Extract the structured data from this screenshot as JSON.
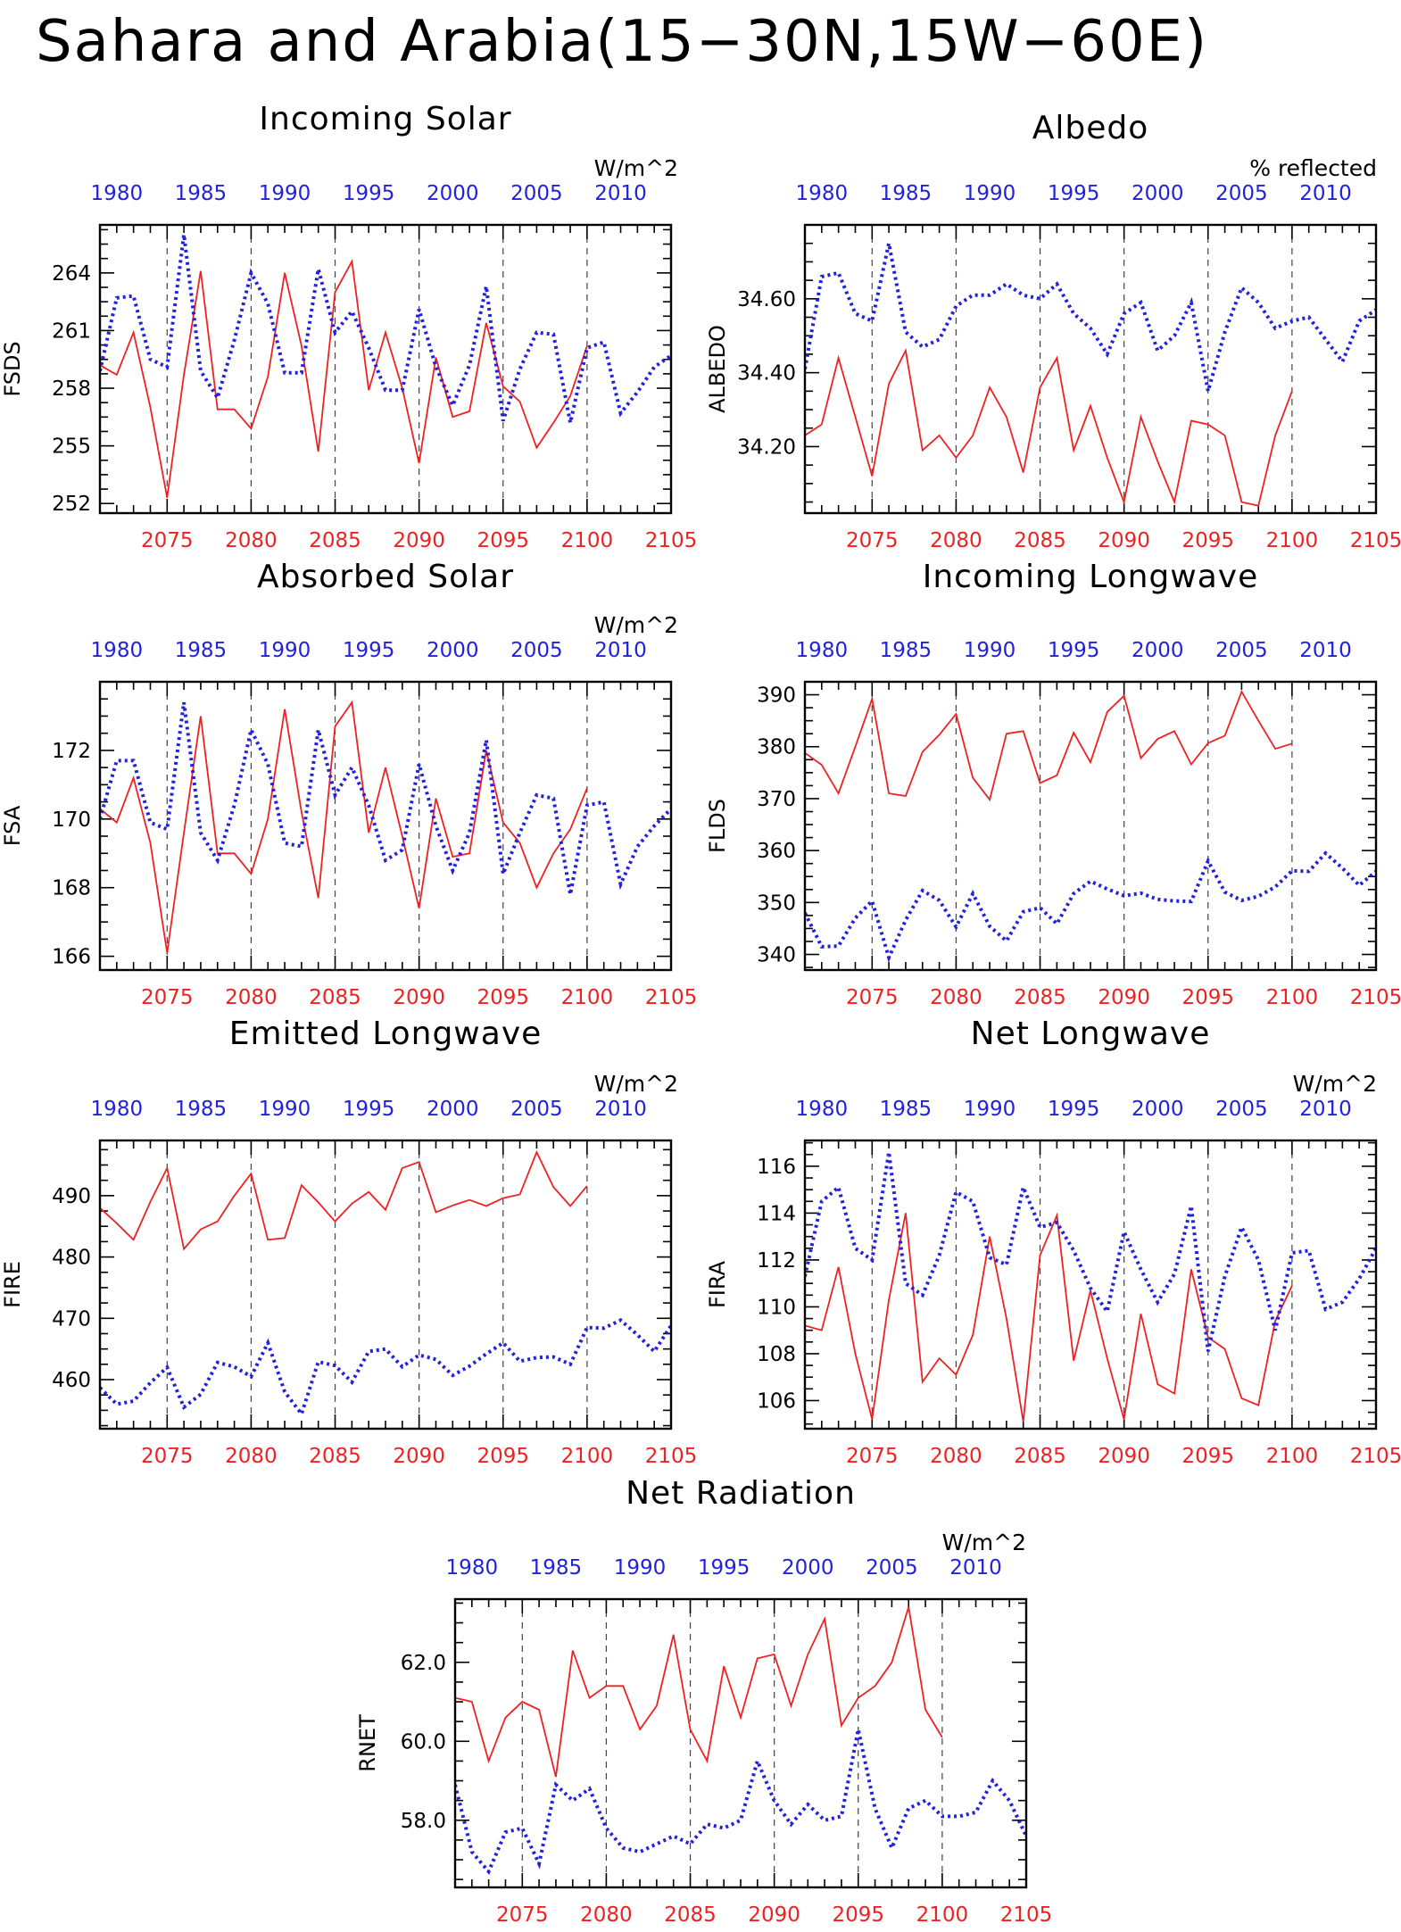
{
  "title": "Sahara and Arabia(15−30N,15W−60E)",
  "colors": {
    "future": "#ee2222",
    "historical": "#2222dd",
    "axis": "#000000"
  },
  "chart_data": [
    {
      "type": "line",
      "title": "Incoming Solar",
      "ylabel": "FSDS",
      "units": "W/m^2",
      "ylim": [
        251.5,
        266.5
      ],
      "yticks": [
        252,
        255,
        258,
        261,
        264
      ],
      "ytick_labels": [
        "252",
        "255",
        "258",
        "261",
        "264"
      ],
      "x_bottom_label_values": [
        2075,
        2080,
        2085,
        2090,
        2095,
        2100,
        2105
      ],
      "x_top_label_values": [
        1980,
        1985,
        1990,
        1995,
        2000,
        2005,
        2010
      ],
      "series": [
        {
          "axis": "bottom",
          "style": "solid",
          "start_year": 2071,
          "values": [
            259.2,
            258.7,
            260.9,
            257.0,
            252.3,
            258.7,
            264.1,
            256.9,
            256.9,
            255.9,
            258.6,
            264.0,
            260.2,
            254.7,
            263.0,
            264.6,
            257.9,
            260.9,
            258.0,
            254.1,
            259.6,
            256.5,
            256.8,
            261.4,
            258.1,
            257.3,
            254.9,
            256.2,
            257.6,
            260.2
          ]
        },
        {
          "axis": "top",
          "style": "dotted",
          "start_year": 1979,
          "values": [
            258.9,
            262.7,
            262.8,
            259.5,
            259.1,
            266.0,
            258.9,
            257.5,
            260.5,
            264.0,
            262.4,
            258.8,
            258.8,
            264.2,
            260.9,
            262.0,
            260.1,
            257.9,
            257.9,
            262.1,
            259.1,
            257.1,
            259.2,
            263.3,
            256.3,
            259.0,
            260.9,
            260.8,
            256.2,
            260.1,
            260.4,
            256.7,
            257.8,
            259.1,
            259.7
          ]
        }
      ]
    },
    {
      "type": "line",
      "title": "Albedo",
      "ylabel": "ALBEDO",
      "units": "% reflected",
      "ylim": [
        34.02,
        34.8
      ],
      "yticks": [
        34.2,
        34.4,
        34.6
      ],
      "ytick_labels": [
        "34.20",
        "34.40",
        "34.60"
      ],
      "x_bottom_label_values": [
        2075,
        2080,
        2085,
        2090,
        2095,
        2100,
        2105
      ],
      "x_top_label_values": [
        1980,
        1985,
        1990,
        1995,
        2000,
        2005,
        2010
      ],
      "series": [
        {
          "axis": "bottom",
          "style": "solid",
          "start_year": 2071,
          "values": [
            34.23,
            34.26,
            34.44,
            34.28,
            34.12,
            34.37,
            34.46,
            34.19,
            34.23,
            34.17,
            34.23,
            34.36,
            34.28,
            34.13,
            34.36,
            34.44,
            34.19,
            34.31,
            34.17,
            34.05,
            34.28,
            34.16,
            34.05,
            34.27,
            34.26,
            34.23,
            34.05,
            34.04,
            34.23,
            34.35
          ]
        },
        {
          "axis": "top",
          "style": "dotted",
          "start_year": 1979,
          "values": [
            34.41,
            34.66,
            34.67,
            34.56,
            34.54,
            34.75,
            34.51,
            34.47,
            34.49,
            34.58,
            34.61,
            34.61,
            34.64,
            34.61,
            34.6,
            34.64,
            34.56,
            34.52,
            34.45,
            34.56,
            34.59,
            34.46,
            34.5,
            34.59,
            34.35,
            34.51,
            34.63,
            34.59,
            34.52,
            34.54,
            34.55,
            34.49,
            34.43,
            34.54,
            34.57
          ]
        }
      ]
    },
    {
      "type": "line",
      "title": "Absorbed Solar",
      "ylabel": "FSA",
      "units": "W/m^2",
      "ylim": [
        165.6,
        174.0
      ],
      "yticks": [
        166,
        168,
        170,
        172
      ],
      "ytick_labels": [
        "166",
        "168",
        "170",
        "172"
      ],
      "x_bottom_label_values": [
        2075,
        2080,
        2085,
        2090,
        2095,
        2100,
        2105
      ],
      "x_top_label_values": [
        1980,
        1985,
        1990,
        1995,
        2000,
        2005,
        2010
      ],
      "series": [
        {
          "axis": "bottom",
          "style": "solid",
          "start_year": 2071,
          "values": [
            170.3,
            169.9,
            171.2,
            169.3,
            166.1,
            169.6,
            173.0,
            169.0,
            169.0,
            168.4,
            170.0,
            173.2,
            170.2,
            167.7,
            172.7,
            173.4,
            169.6,
            171.5,
            169.5,
            167.4,
            170.6,
            168.9,
            169.0,
            172.0,
            169.9,
            169.3,
            168.0,
            169.0,
            169.7,
            170.9
          ]
        },
        {
          "axis": "top",
          "style": "dotted",
          "start_year": 1979,
          "values": [
            170.0,
            171.7,
            171.7,
            169.9,
            169.7,
            173.4,
            169.6,
            168.8,
            170.4,
            172.6,
            171.6,
            169.3,
            169.2,
            172.6,
            170.7,
            171.5,
            170.4,
            168.8,
            169.1,
            171.6,
            169.8,
            168.5,
            169.6,
            172.3,
            168.4,
            169.6,
            170.7,
            170.6,
            167.8,
            170.4,
            170.5,
            168.1,
            169.2,
            169.8,
            170.3
          ]
        }
      ]
    },
    {
      "type": "line",
      "title": "Incoming Longwave",
      "ylabel": "FLDS",
      "units": "",
      "ylim": [
        337.0,
        392.5
      ],
      "yticks": [
        340,
        350,
        360,
        370,
        380,
        390
      ],
      "ytick_labels": [
        "340",
        "350",
        "360",
        "370",
        "380",
        "390"
      ],
      "x_bottom_label_values": [
        2075,
        2080,
        2085,
        2090,
        2095,
        2100,
        2105
      ],
      "x_top_label_values": [
        1980,
        1985,
        1990,
        1995,
        2000,
        2005,
        2010
      ],
      "series": [
        {
          "axis": "bottom",
          "style": "solid",
          "start_year": 2071,
          "values": [
            378.8,
            376.5,
            371.0,
            380.0,
            389.2,
            371.0,
            370.5,
            379.0,
            382.3,
            386.3,
            374.0,
            369.8,
            382.5,
            383.0,
            373.0,
            374.5,
            382.7,
            377.0,
            386.7,
            389.8,
            377.8,
            381.5,
            383.0,
            376.6,
            380.7,
            382.1,
            390.6,
            385.0,
            379.6,
            380.6
          ]
        },
        {
          "axis": "top",
          "style": "dotted",
          "start_year": 1979,
          "values": [
            348.0,
            341.5,
            341.6,
            347.0,
            350.3,
            339.4,
            346.6,
            352.3,
            350.4,
            345.3,
            351.7,
            345.4,
            342.6,
            348.2,
            349.0,
            345.9,
            351.7,
            354.1,
            352.6,
            351.3,
            351.8,
            350.6,
            350.3,
            350.2,
            358.0,
            352.0,
            350.4,
            351.2,
            353.0,
            356.1,
            356.0,
            359.5,
            356.6,
            353.3,
            356.0
          ]
        }
      ]
    },
    {
      "type": "line",
      "title": "Emitted Longwave",
      "ylabel": "FIRE",
      "units": "W/m^2",
      "ylim": [
        452.0,
        499.0
      ],
      "yticks": [
        460,
        470,
        480,
        490
      ],
      "ytick_labels": [
        "460",
        "470",
        "480",
        "490"
      ],
      "x_bottom_label_values": [
        2075,
        2080,
        2085,
        2090,
        2095,
        2100,
        2105
      ],
      "x_top_label_values": [
        1980,
        1985,
        1990,
        1995,
        2000,
        2005,
        2010
      ],
      "series": [
        {
          "axis": "bottom",
          "style": "solid",
          "start_year": 2071,
          "values": [
            488.0,
            485.5,
            482.8,
            489.0,
            494.5,
            481.3,
            484.5,
            485.8,
            490.0,
            493.6,
            482.8,
            483.1,
            491.7,
            488.9,
            485.8,
            488.7,
            490.6,
            487.7,
            494.5,
            495.5,
            487.3,
            488.4,
            489.3,
            488.3,
            489.6,
            490.2,
            497.1,
            491.4,
            488.3,
            491.6
          ]
        },
        {
          "axis": "top",
          "style": "dotted",
          "start_year": 1979,
          "values": [
            458.7,
            456.0,
            456.5,
            459.5,
            462.0,
            455.5,
            457.6,
            462.8,
            462.1,
            460.5,
            466.0,
            458.0,
            454.4,
            462.9,
            462.3,
            459.6,
            464.6,
            465.0,
            462.1,
            464.0,
            463.3,
            460.7,
            462.2,
            464.2,
            466.0,
            463.0,
            463.6,
            463.7,
            462.5,
            468.5,
            468.4,
            469.7,
            467.3,
            464.6,
            468.8
          ]
        }
      ]
    },
    {
      "type": "line",
      "title": "Net Longwave",
      "ylabel": "FIRA",
      "units": "W/m^2",
      "ylim": [
        104.8,
        117.1
      ],
      "yticks": [
        106,
        108,
        110,
        112,
        114,
        116
      ],
      "ytick_labels": [
        "106",
        "108",
        "110",
        "112",
        "114",
        "116"
      ],
      "x_bottom_label_values": [
        2075,
        2080,
        2085,
        2090,
        2095,
        2100,
        2105
      ],
      "x_top_label_values": [
        1980,
        1985,
        1990,
        1995,
        2000,
        2005,
        2010
      ],
      "series": [
        {
          "axis": "bottom",
          "style": "solid",
          "start_year": 2071,
          "values": [
            109.2,
            109.0,
            111.7,
            108.0,
            105.2,
            110.3,
            114.0,
            106.8,
            107.8,
            107.1,
            108.8,
            113.0,
            109.5,
            105.1,
            112.2,
            113.9,
            107.7,
            110.7,
            107.8,
            105.2,
            109.7,
            106.7,
            106.3,
            111.6,
            108.7,
            108.2,
            106.1,
            105.8,
            109.4,
            110.9
          ]
        },
        {
          "axis": "top",
          "style": "dotted",
          "start_year": 1979,
          "values": [
            111.3,
            114.5,
            115.1,
            112.5,
            112.0,
            116.6,
            111.0,
            110.5,
            112.2,
            114.9,
            114.5,
            112.1,
            111.8,
            115.1,
            113.4,
            113.6,
            112.4,
            110.8,
            109.8,
            113.2,
            111.6,
            110.2,
            111.4,
            114.3,
            108.1,
            111.3,
            113.4,
            112.0,
            109.0,
            112.3,
            112.4,
            109.9,
            110.2,
            111.2,
            112.5
          ]
        }
      ]
    },
    {
      "type": "line",
      "title": "Net Radiation",
      "ylabel": "RNET",
      "units": "W/m^2",
      "ylim": [
        56.3,
        63.6
      ],
      "yticks": [
        58,
        60,
        62
      ],
      "ytick_labels": [
        "58.0",
        "60.0",
        "62.0"
      ],
      "x_bottom_label_values": [
        2075,
        2080,
        2085,
        2090,
        2095,
        2100,
        2105
      ],
      "x_top_label_values": [
        1980,
        1985,
        1990,
        1995,
        2000,
        2005,
        2010
      ],
      "series": [
        {
          "axis": "bottom",
          "style": "solid",
          "start_year": 2071,
          "values": [
            61.1,
            61.0,
            59.5,
            60.6,
            61.0,
            60.8,
            59.1,
            62.3,
            61.1,
            61.4,
            61.4,
            60.3,
            60.9,
            62.7,
            60.3,
            59.5,
            61.9,
            60.6,
            62.1,
            62.2,
            60.9,
            62.2,
            63.1,
            60.4,
            61.1,
            61.4,
            62.0,
            63.4,
            60.8,
            60.1
          ]
        },
        {
          "axis": "top",
          "style": "dotted",
          "start_year": 1979,
          "values": [
            58.9,
            57.2,
            56.7,
            57.7,
            57.8,
            56.9,
            58.9,
            58.5,
            58.8,
            57.8,
            57.3,
            57.2,
            57.4,
            57.6,
            57.4,
            57.9,
            57.8,
            58.0,
            59.5,
            58.5,
            57.9,
            58.4,
            58.0,
            58.1,
            60.3,
            58.3,
            57.3,
            58.3,
            58.5,
            58.1,
            58.1,
            58.2,
            59.0,
            58.5,
            57.6
          ]
        }
      ]
    }
  ]
}
